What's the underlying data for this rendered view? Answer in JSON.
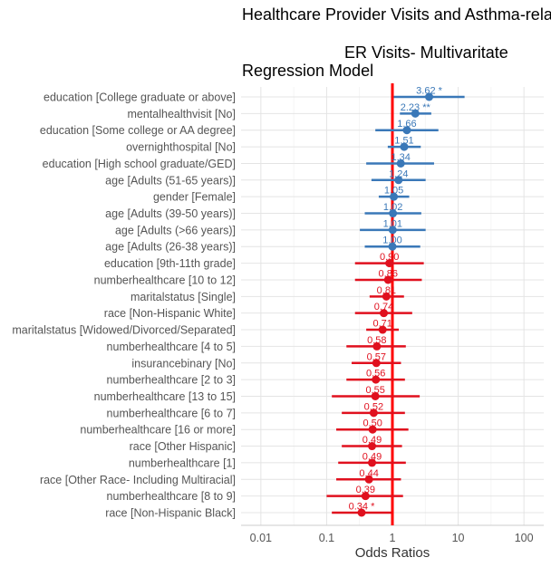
{
  "chart_data": {
    "type": "forest",
    "title_lines": [
      "Healthcare Provider Visits and Asthma-related",
      "ER Visits- Multivaritate",
      "Regression Model"
    ],
    "xlabel": "Odds Ratios",
    "x_scale": "log",
    "xlim": [
      0.005,
      200
    ],
    "x_ticks": [
      {
        "value": 0.01,
        "label": "0.01"
      },
      {
        "value": 0.1,
        "label": "0.1"
      },
      {
        "value": 1,
        "label": "1"
      },
      {
        "value": 10,
        "label": "10"
      },
      {
        "value": 100,
        "label": "100"
      }
    ],
    "reference_line": 1,
    "colors": {
      "positive": "#3a78b8",
      "negative": "#e0101e",
      "reference": "#ff0000",
      "grid": "#e4e4e4",
      "axis_text": "#555555"
    },
    "rows": [
      {
        "term": "education [College graduate or above]",
        "or": 3.62,
        "lo": 1.05,
        "hi": 12.5,
        "label": "3.62 *"
      },
      {
        "term": "mentalhealthvisit [No]",
        "or": 2.23,
        "lo": 1.3,
        "hi": 3.9,
        "label": "2.23 **"
      },
      {
        "term": "education [Some college or AA degree]",
        "or": 1.66,
        "lo": 0.55,
        "hi": 5.0,
        "label": "1.66"
      },
      {
        "term": "overnighthospital [No]",
        "or": 1.51,
        "lo": 0.85,
        "hi": 2.7,
        "label": "1.51"
      },
      {
        "term": "education [High school graduate/GED]",
        "or": 1.34,
        "lo": 0.4,
        "hi": 4.3,
        "label": "1.34"
      },
      {
        "term": "age [Adults (51-65 years)]",
        "or": 1.24,
        "lo": 0.48,
        "hi": 3.2,
        "label": "1.24"
      },
      {
        "term": "gender [Female]",
        "or": 1.05,
        "lo": 0.62,
        "hi": 1.8,
        "label": "1.05"
      },
      {
        "term": "age [Adults (39-50 years)]",
        "or": 1.02,
        "lo": 0.38,
        "hi": 2.75,
        "label": "1.02"
      },
      {
        "term": "age [Adults (>66 years)]",
        "or": 1.01,
        "lo": 0.32,
        "hi": 3.2,
        "label": "1.01"
      },
      {
        "term": "age [Adults (26-38 years)]",
        "or": 1.0,
        "lo": 0.38,
        "hi": 2.65,
        "label": "1.00"
      },
      {
        "term": "education [9th-11th grade]",
        "or": 0.9,
        "lo": 0.27,
        "hi": 3.0,
        "label": "0.90"
      },
      {
        "term": "numberhealthcare [10 to 12]",
        "or": 0.86,
        "lo": 0.27,
        "hi": 2.8,
        "label": "0.86"
      },
      {
        "term": "maritalstatus [Single]",
        "or": 0.81,
        "lo": 0.45,
        "hi": 1.5,
        "label": "0.81"
      },
      {
        "term": "race [Non-Hispanic White]",
        "or": 0.74,
        "lo": 0.27,
        "hi": 2.0,
        "label": "0.74"
      },
      {
        "term": "maritalstatus [Widowed/Divorced/Separated]",
        "or": 0.71,
        "lo": 0.4,
        "hi": 1.25,
        "label": "0.71"
      },
      {
        "term": "numberhealthcare [4 to 5]",
        "or": 0.58,
        "lo": 0.2,
        "hi": 1.6,
        "label": "0.58"
      },
      {
        "term": "insurancebinary [No]",
        "or": 0.57,
        "lo": 0.24,
        "hi": 1.35,
        "label": "0.57"
      },
      {
        "term": "numberhealthcare [2 to 3]",
        "or": 0.56,
        "lo": 0.2,
        "hi": 1.55,
        "label": "0.56"
      },
      {
        "term": "numberhealthcare [13 to 15]",
        "or": 0.55,
        "lo": 0.12,
        "hi": 2.6,
        "label": "0.55"
      },
      {
        "term": "numberhealthcare [6 to 7]",
        "or": 0.52,
        "lo": 0.17,
        "hi": 1.55,
        "label": "0.52"
      },
      {
        "term": "numberhealthcare [16 or more]",
        "or": 0.5,
        "lo": 0.14,
        "hi": 1.75,
        "label": "0.50"
      },
      {
        "term": "race [Other Hispanic]",
        "or": 0.49,
        "lo": 0.17,
        "hi": 1.4,
        "label": "0.49"
      },
      {
        "term": "numberhealthcare [1]",
        "or": 0.49,
        "lo": 0.15,
        "hi": 1.6,
        "label": "0.49"
      },
      {
        "term": "race [Other Race- Including Multiracial]",
        "or": 0.44,
        "lo": 0.14,
        "hi": 1.35,
        "label": "0.44"
      },
      {
        "term": "numberhealthcare [8 to 9]",
        "or": 0.39,
        "lo": 0.1,
        "hi": 1.45,
        "label": "0.39"
      },
      {
        "term": "race [Non-Hispanic Black]",
        "or": 0.34,
        "lo": 0.12,
        "hi": 0.96,
        "label": "0.34 *"
      }
    ]
  }
}
